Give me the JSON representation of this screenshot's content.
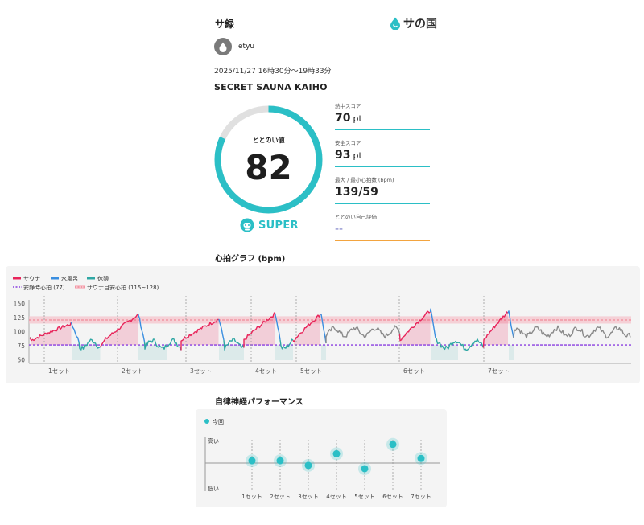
{
  "header": {
    "title": "サ録",
    "logo_text": "サの国",
    "colors": {
      "accent": "#2bbfc6",
      "sauna": "#e8245a",
      "cold": "#3a8ee0",
      "rest": "#2fa7a4",
      "resting_hr": "#8a3fe0",
      "target_hr": "#f07a8a"
    }
  },
  "user": {
    "name": "etyu",
    "icon": "drop-icon"
  },
  "session": {
    "datetime": "2025/11/27 16時30分〜19時33分",
    "facility": "SECRET SAUNA KAIHO"
  },
  "gauge": {
    "label": "ととのい値",
    "value": 82,
    "max": 100,
    "rank_label": "SUPER",
    "rank_icon": "robot-face-icon"
  },
  "scores": [
    {
      "label": "熱中スコア",
      "value": "70",
      "unit": "pt"
    },
    {
      "label": "安全スコア",
      "value": "93",
      "unit": "pt"
    },
    {
      "label": "最大 / 最小心拍数 (bpm)",
      "value": "139/59",
      "unit": ""
    },
    {
      "label": "ととのい自己評価",
      "value": "--",
      "unit": ""
    }
  ],
  "heart_rate": {
    "section_title": "心拍グラフ (bpm)",
    "legend": {
      "sauna": "サウナ",
      "cold": "水風呂",
      "rest": "休憩",
      "resting": "安静時心拍 (77)",
      "target": "サウナ目安心拍 (115~128)"
    },
    "y_ticks": [
      "150",
      "125",
      "100",
      "75",
      "50"
    ],
    "set_labels": [
      "1セット",
      "2セット",
      "3セット",
      "4セット",
      "5セット",
      "6セット",
      "7セット"
    ]
  },
  "chart_data": [
    {
      "type": "line",
      "ylim": [
        50,
        150
      ],
      "y_ticks": [
        50,
        75,
        100,
        125,
        150
      ],
      "reference_lines": [
        {
          "name": "安静時心拍 (77)",
          "value": 77
        },
        {
          "name": "サウナ目安心拍 (115~128)",
          "range": [
            115,
            128
          ]
        }
      ],
      "categories": [
        "1セット",
        "2セット",
        "3セット",
        "4セット",
        "5セット",
        "6セット",
        "7セット"
      ],
      "series": [
        {
          "name": "サウナ"
        },
        {
          "name": "水風呂"
        },
        {
          "name": "休憩"
        }
      ],
      "grid": false,
      "legend": "top-left"
    },
    {
      "type": "scatter",
      "title": "自律神経パフォーマンス",
      "categories": [
        "1セット",
        "2セット",
        "3セット",
        "4セット",
        "5セット",
        "6セット",
        "7セット"
      ],
      "series": [
        {
          "name": "今回",
          "values": [
            0.55,
            0.55,
            0.45,
            0.7,
            0.38,
            0.9,
            0.6
          ]
        }
      ],
      "y_labels": {
        "high": "高い",
        "low": "低い"
      },
      "legend": "top-left"
    }
  ],
  "ans": {
    "section_title": "自律神経パフォーマンス",
    "legend_label": "今回",
    "y_high": "高い",
    "y_low": "低い",
    "set_labels": [
      "1セット",
      "2セット",
      "3セット",
      "4セット",
      "5セット",
      "6セット",
      "7セット"
    ]
  }
}
